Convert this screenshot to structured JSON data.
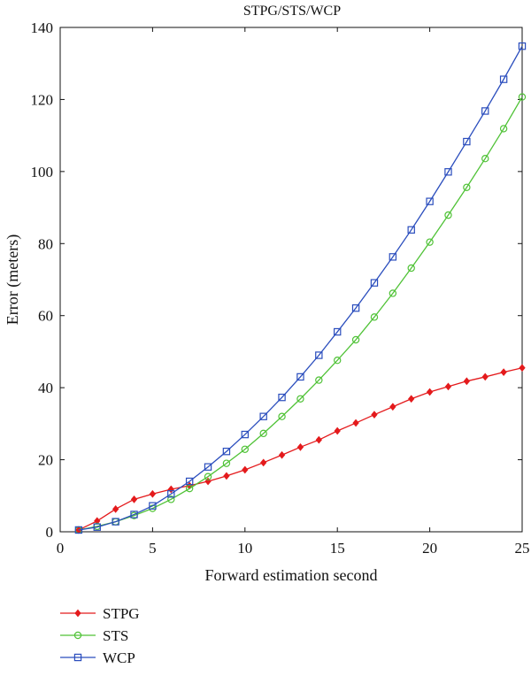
{
  "chart_data": {
    "type": "line",
    "title": "STPG/STS/WCP",
    "xlabel": "Forward estimation second",
    "ylabel": "Error (meters)",
    "xlim": [
      0,
      25
    ],
    "ylim": [
      0,
      140
    ],
    "xticks": [
      0,
      5,
      10,
      15,
      20,
      25
    ],
    "yticks": [
      0,
      20,
      40,
      60,
      80,
      100,
      120,
      140
    ],
    "grid": false,
    "legend_position": "below-left",
    "x": [
      1,
      2,
      3,
      4,
      5,
      6,
      7,
      8,
      9,
      10,
      11,
      12,
      13,
      14,
      15,
      16,
      17,
      18,
      19,
      20,
      21,
      22,
      23,
      24,
      25
    ],
    "series": [
      {
        "name": "STPG",
        "color": "#e41a1c",
        "marker": "diamond",
        "values": [
          0.5,
          3.0,
          6.3,
          9.0,
          10.5,
          11.8,
          12.8,
          14.0,
          15.5,
          17.2,
          19.2,
          21.3,
          23.5,
          25.5,
          28.0,
          30.2,
          32.5,
          34.7,
          36.9,
          38.8,
          40.3,
          41.8,
          43.0,
          44.3,
          45.5
        ]
      },
      {
        "name": "STS",
        "color": "#4fc236",
        "marker": "circle",
        "values": [
          0.5,
          1.5,
          2.8,
          4.5,
          6.5,
          9.0,
          12.0,
          15.3,
          19.0,
          22.9,
          27.3,
          32.0,
          36.9,
          42.1,
          47.6,
          53.3,
          59.6,
          66.2,
          73.2,
          80.4,
          87.9,
          95.6,
          103.6,
          111.9,
          120.7
        ]
      },
      {
        "name": "WCP",
        "color": "#2a4dbd",
        "marker": "square",
        "values": [
          0.5,
          1.3,
          2.8,
          4.8,
          7.2,
          10.5,
          14.0,
          18.0,
          22.3,
          27.0,
          32.0,
          37.3,
          43.0,
          49.0,
          55.5,
          62.1,
          69.1,
          76.3,
          83.8,
          91.7,
          99.9,
          108.3,
          116.8,
          125.6,
          134.8
        ]
      }
    ]
  }
}
